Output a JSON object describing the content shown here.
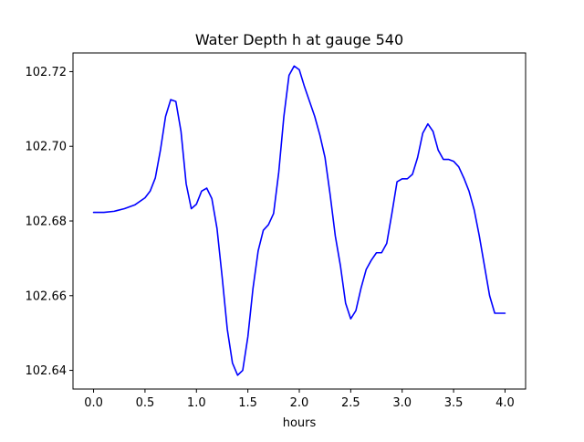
{
  "chart_data": {
    "type": "line",
    "title": "Water Depth h at gauge 540",
    "xlabel": "hours",
    "ylabel": "",
    "xlim": [
      -0.2,
      4.2
    ],
    "ylim": [
      102.635,
      102.725
    ],
    "grid": false,
    "x_ticks": [
      0.0,
      0.5,
      1.0,
      1.5,
      2.0,
      2.5,
      3.0,
      3.5,
      4.0
    ],
    "x_tick_labels": [
      "0.0",
      "0.5",
      "1.0",
      "1.5",
      "2.0",
      "2.5",
      "3.0",
      "3.5",
      "4.0"
    ],
    "y_ticks": [
      102.64,
      102.66,
      102.68,
      102.7,
      102.72
    ],
    "y_tick_labels": [
      "102.64",
      "102.66",
      "102.68",
      "102.70",
      "102.72"
    ],
    "series": [
      {
        "color": "#0000ff",
        "x": [
          0.0,
          0.1,
          0.2,
          0.3,
          0.4,
          0.5,
          0.55,
          0.6,
          0.65,
          0.7,
          0.75,
          0.8,
          0.85,
          0.9,
          0.95,
          1.0,
          1.05,
          1.1,
          1.15,
          1.2,
          1.25,
          1.3,
          1.35,
          1.4,
          1.45,
          1.5,
          1.55,
          1.6,
          1.65,
          1.7,
          1.75,
          1.8,
          1.85,
          1.9,
          1.95,
          2.0,
          2.05,
          2.1,
          2.15,
          2.2,
          2.25,
          2.3,
          2.35,
          2.4,
          2.45,
          2.5,
          2.55,
          2.6,
          2.65,
          2.7,
          2.75,
          2.8,
          2.85,
          2.9,
          2.95,
          3.0,
          3.05,
          3.1,
          3.15,
          3.2,
          3.25,
          3.3,
          3.35,
          3.4,
          3.45,
          3.5,
          3.55,
          3.6,
          3.65,
          3.7,
          3.75,
          3.8,
          3.85,
          3.9,
          3.95,
          4.0
        ],
        "y": [
          102.6823,
          102.6823,
          102.6826,
          102.6833,
          102.6843,
          102.6862,
          102.688,
          102.6915,
          102.699,
          102.708,
          102.7125,
          102.712,
          102.704,
          102.69,
          102.6833,
          102.6845,
          102.688,
          102.6888,
          102.686,
          102.678,
          102.665,
          102.651,
          102.642,
          102.6387,
          102.64,
          102.649,
          102.662,
          102.672,
          102.6775,
          102.679,
          102.682,
          102.693,
          102.708,
          102.719,
          102.7215,
          102.7205,
          102.716,
          102.712,
          102.708,
          102.703,
          102.697,
          102.687,
          102.676,
          102.668,
          102.658,
          102.6538,
          102.656,
          102.662,
          102.667,
          102.6695,
          102.6715,
          102.6715,
          102.674,
          102.682,
          102.6905,
          102.6913,
          102.6913,
          102.6925,
          102.697,
          102.7035,
          102.706,
          102.704,
          102.699,
          102.6965,
          102.6965,
          102.696,
          102.6945,
          102.6915,
          102.688,
          102.683,
          102.676,
          102.668,
          102.66,
          102.6553,
          102.6553,
          102.6553
        ]
      }
    ]
  }
}
